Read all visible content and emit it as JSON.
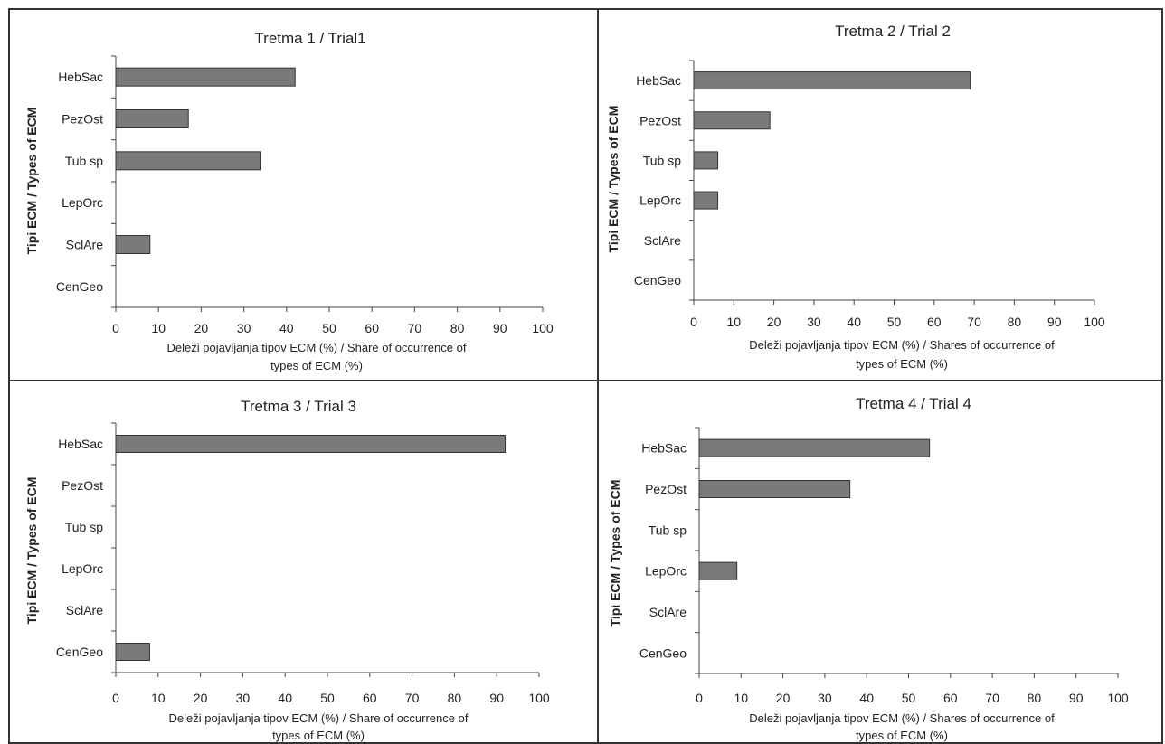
{
  "chart_data": [
    {
      "type": "bar",
      "orientation": "horizontal",
      "title": "Tretma 1 / Trial1",
      "categories": [
        "HebSac",
        "PezOst",
        "Tub sp",
        "LepOrc",
        "SclAre",
        "CenGeo"
      ],
      "values": [
        42,
        17,
        34,
        0,
        8,
        0
      ],
      "xlabel_lines": [
        "Deleži pojavljanja tipov ECM (%) / Share of occurrence of",
        "types of ECM (%)"
      ],
      "ylabel": "Tipi ECM / Types of ECM",
      "xlim": [
        0,
        100
      ],
      "xticks": [
        0,
        10,
        20,
        30,
        40,
        50,
        60,
        70,
        80,
        90,
        100
      ],
      "grid": false,
      "legend": "none"
    },
    {
      "type": "bar",
      "orientation": "horizontal",
      "title": "Tretma 2 / Trial 2",
      "categories": [
        "HebSac",
        "PezOst",
        "Tub sp",
        "LepOrc",
        "SclAre",
        "CenGeo"
      ],
      "values": [
        69,
        19,
        6,
        6,
        0,
        0
      ],
      "xlabel_lines": [
        "Deleži pojavljanja tipov ECM (%) / Shares of occurrence of",
        "types of ECM (%)"
      ],
      "ylabel": "Tipi ECM / Types of ECM",
      "xlim": [
        0,
        100
      ],
      "xticks": [
        0,
        10,
        20,
        30,
        40,
        50,
        60,
        70,
        80,
        90,
        100
      ],
      "grid": false,
      "legend": "none"
    },
    {
      "type": "bar",
      "orientation": "horizontal",
      "title": "Tretma 3 / Trial 3",
      "categories": [
        "HebSac",
        "PezOst",
        "Tub sp",
        "LepOrc",
        "SclAre",
        "CenGeo"
      ],
      "values": [
        92,
        0,
        0,
        0,
        0,
        8
      ],
      "xlabel_lines": [
        "Deleži pojavljanja tipov ECM (%) / Share of occurrence of",
        "types of ECM (%)"
      ],
      "ylabel": "Tipi ECM / Types of ECM",
      "xlim": [
        0,
        100
      ],
      "xticks": [
        0,
        10,
        20,
        30,
        40,
        50,
        60,
        70,
        80,
        90,
        100
      ],
      "grid": false,
      "legend": "none"
    },
    {
      "type": "bar",
      "orientation": "horizontal",
      "title": "Tretma 4 / Trial 4",
      "categories": [
        "HebSac",
        "PezOst",
        "Tub sp",
        "LepOrc",
        "SclAre",
        "CenGeo"
      ],
      "values": [
        55,
        36,
        0,
        9,
        0,
        0
      ],
      "xlabel_lines": [
        "Deleži pojavljanja tipov ECM (%) / Shares of occurrence of",
        "types of ECM (%)"
      ],
      "ylabel": "Tipi ECM / Types of ECM",
      "xlim": [
        0,
        100
      ],
      "xticks": [
        0,
        10,
        20,
        30,
        40,
        50,
        60,
        70,
        80,
        90,
        100
      ],
      "grid": false,
      "legend": "none"
    }
  ]
}
